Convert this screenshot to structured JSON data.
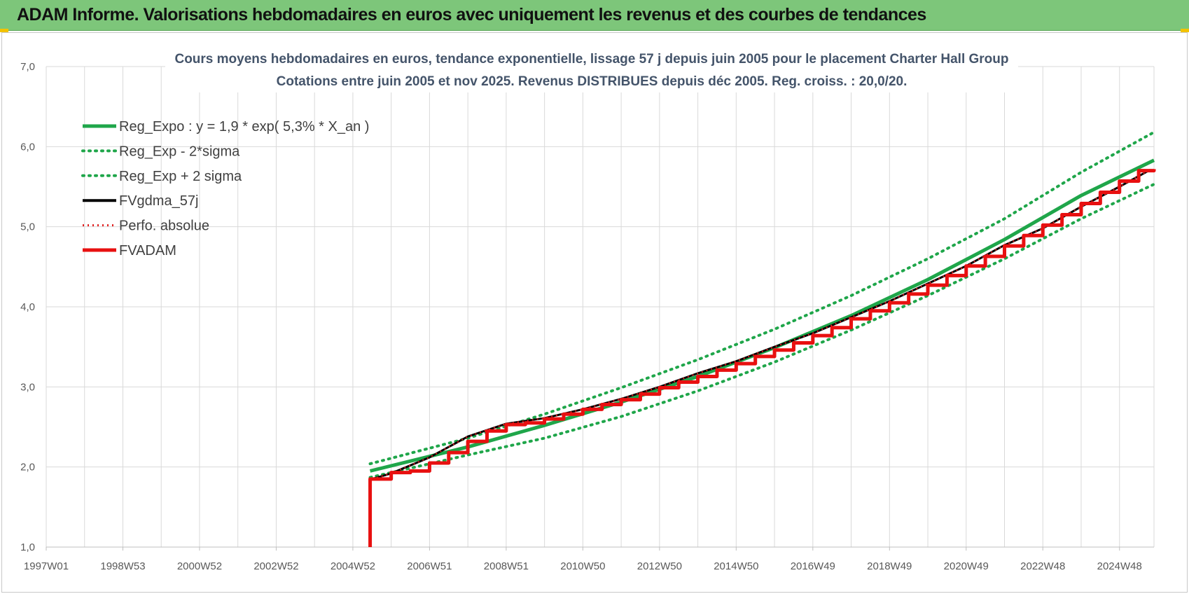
{
  "header": {
    "title": "ADAM Informe. Valorisations hebdomadaires en euros avec uniquement les revenus et des courbes de tendances"
  },
  "colors": {
    "header_bg": "#7dc67a",
    "reg_expo": "#1fa64a",
    "sigma": "#1fa64a",
    "fvgdma": "#000000",
    "perfo": "#e02020",
    "fvadam": "#e81010",
    "grid": "#d9d9d9"
  },
  "chart_data": {
    "type": "line",
    "title": "Cours moyens hebdomadaires en euros, tendance exponentielle, lissage 57 j depuis juin 2005 pour le placement Charter Hall Group",
    "subtitle": "Cotations entre juin 2005 et nov 2025. Revenus DISTRIBUES depuis déc 2005. Reg. croiss. : 20,0/20.",
    "xlabel": "",
    "ylabel": "",
    "ylim": [
      1.0,
      7.0
    ],
    "y_ticks": [
      "1,0",
      "2,0",
      "3,0",
      "4,0",
      "5,0",
      "6,0",
      "7,0"
    ],
    "xlim": [
      1997.0,
      2025.9
    ],
    "x_tick_labels": [
      "1997W01",
      "1998W53",
      "2000W52",
      "2002W52",
      "2004W52",
      "2006W51",
      "2008W51",
      "2010W50",
      "2012W50",
      "2014W50",
      "2016W49",
      "2018W49",
      "2020W49",
      "2022W48",
      "2024W48"
    ],
    "x_tick_years": [
      1997.0,
      1999.0,
      2001.0,
      2003.0,
      2005.0,
      2007.0,
      2009.0,
      2011.0,
      2013.0,
      2015.0,
      2017.0,
      2019.0,
      2021.0,
      2023.0,
      2025.0
    ],
    "grid": true,
    "legend_position": "top-left",
    "series": [
      {
        "name": "Reg_Expo : y = 1,9 * exp( 5,3% *  X_an )",
        "style": "solid-thick",
        "x": [
          2005.45,
          2008.0,
          2010.0,
          2012.0,
          2014.0,
          2016.0,
          2018.0,
          2020.0,
          2022.0,
          2024.0,
          2025.9
        ],
        "y": [
          1.95,
          2.25,
          2.52,
          2.81,
          3.13,
          3.49,
          3.89,
          4.34,
          4.84,
          5.39,
          5.83
        ]
      },
      {
        "name": "Reg_Exp - 2*sigma",
        "style": "dotted",
        "x": [
          2005.45,
          2008.0,
          2010.0,
          2012.0,
          2014.0,
          2016.0,
          2018.0,
          2020.0,
          2022.0,
          2024.0,
          2025.9
        ],
        "y": [
          1.87,
          2.15,
          2.36,
          2.63,
          2.95,
          3.31,
          3.71,
          4.14,
          4.6,
          5.1,
          5.53
        ]
      },
      {
        "name": "Reg_Exp + 2 sigma",
        "style": "dotted",
        "x": [
          2005.45,
          2008.0,
          2010.0,
          2012.0,
          2014.0,
          2016.0,
          2018.0,
          2020.0,
          2022.0,
          2024.0,
          2025.9
        ],
        "y": [
          2.04,
          2.36,
          2.66,
          2.99,
          3.34,
          3.72,
          4.14,
          4.6,
          5.1,
          5.68,
          6.18
        ]
      },
      {
        "name": "FVgdma_57j",
        "style": "solid",
        "x": [
          2005.5,
          2006.0,
          2007.0,
          2008.0,
          2009.0,
          2010.0,
          2011.0,
          2012.0,
          2013.0,
          2014.0,
          2015.0,
          2016.0,
          2017.0,
          2018.0,
          2019.0,
          2020.0,
          2021.0,
          2022.0,
          2023.0,
          2024.0,
          2025.0,
          2025.8
        ],
        "y": [
          1.85,
          1.92,
          2.12,
          2.38,
          2.54,
          2.61,
          2.72,
          2.85,
          3.0,
          3.17,
          3.32,
          3.5,
          3.67,
          3.87,
          4.07,
          4.29,
          4.51,
          4.77,
          4.98,
          5.25,
          5.5,
          5.71
        ]
      },
      {
        "name": "Perfo. absolue",
        "style": "dotted",
        "x": [
          2005.5,
          2006.0,
          2007.0,
          2008.0,
          2009.0,
          2010.0,
          2011.0,
          2012.0,
          2013.0,
          2014.0,
          2015.0,
          2016.0,
          2017.0,
          2018.0,
          2019.0,
          2020.0,
          2021.0,
          2022.0,
          2023.0,
          2024.0,
          2025.0,
          2025.8
        ],
        "y": [
          1.85,
          1.92,
          2.12,
          2.38,
          2.54,
          2.61,
          2.72,
          2.85,
          3.0,
          3.17,
          3.32,
          3.5,
          3.67,
          3.87,
          4.07,
          4.29,
          4.51,
          4.77,
          4.98,
          5.25,
          5.5,
          5.71
        ]
      },
      {
        "name": "FVADAM",
        "style": "step-thick",
        "x": [
          2005.45,
          2005.45,
          2006.0,
          2006.5,
          2007.0,
          2007.5,
          2008.0,
          2008.5,
          2009.0,
          2009.5,
          2010.0,
          2010.5,
          2011.0,
          2011.5,
          2012.0,
          2012.5,
          2013.0,
          2013.5,
          2014.0,
          2014.5,
          2015.0,
          2015.5,
          2016.0,
          2016.5,
          2017.0,
          2017.5,
          2018.0,
          2018.5,
          2019.0,
          2019.5,
          2020.0,
          2020.5,
          2021.0,
          2021.5,
          2022.0,
          2022.5,
          2023.0,
          2023.5,
          2024.0,
          2024.5,
          2025.0,
          2025.5,
          2025.9
        ],
        "y": [
          1.0,
          1.85,
          1.93,
          1.95,
          2.05,
          2.18,
          2.32,
          2.45,
          2.53,
          2.55,
          2.6,
          2.66,
          2.72,
          2.78,
          2.84,
          2.91,
          2.99,
          3.06,
          3.13,
          3.21,
          3.29,
          3.38,
          3.46,
          3.55,
          3.64,
          3.74,
          3.85,
          3.95,
          4.05,
          4.16,
          4.27,
          4.39,
          4.51,
          4.63,
          4.76,
          4.89,
          5.02,
          5.15,
          5.29,
          5.43,
          5.57,
          5.7,
          5.72
        ]
      }
    ]
  }
}
